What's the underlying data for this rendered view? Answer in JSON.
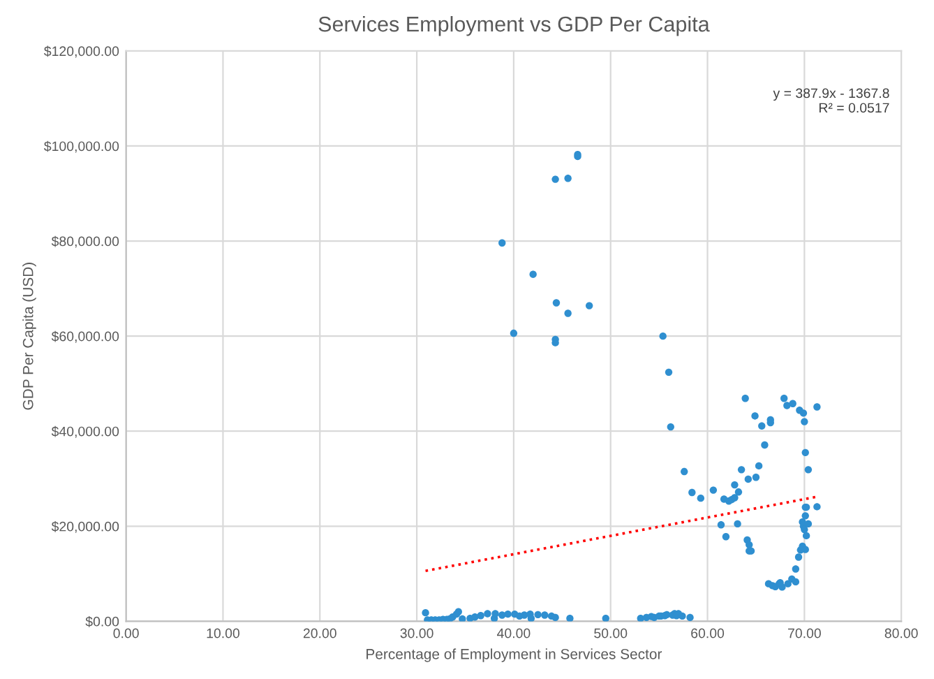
{
  "chart_data": {
    "type": "scatter",
    "title": "Services Employment vs GDP Per Capita",
    "xlabel": "Percentage of Employment in Services Sector",
    "ylabel": "GDP Per Capita (USD)",
    "annotations": [
      "y = 387.9x - 1367.8\nR² = 0.0517"
    ],
    "xlim": [
      0,
      80
    ],
    "ylim": [
      0,
      120000
    ],
    "xticks": [
      {
        "value": 0,
        "label": "0.00"
      },
      {
        "value": 10,
        "label": "10.00"
      },
      {
        "value": 20,
        "label": "20.00"
      },
      {
        "value": 30,
        "label": "30.00"
      },
      {
        "value": 40,
        "label": "40.00"
      },
      {
        "value": 50,
        "label": "50.00"
      },
      {
        "value": 60,
        "label": "60.00"
      },
      {
        "value": 70,
        "label": "70.00"
      },
      {
        "value": 80,
        "label": "80.00"
      }
    ],
    "yticks": [
      {
        "value": 0,
        "label": "$0.00"
      },
      {
        "value": 20000,
        "label": "$20,000.00"
      },
      {
        "value": 40000,
        "label": "$40,000.00"
      },
      {
        "value": 60000,
        "label": "$60,000.00"
      },
      {
        "value": 80000,
        "label": "$80,000.00"
      },
      {
        "value": 100000,
        "label": "$100,000.00"
      },
      {
        "value": 120000,
        "label": "$120,000.00"
      }
    ],
    "grid": true,
    "series": [
      {
        "color": "#2f8fd0",
        "marker": "circle",
        "x": [
          38.8,
          44.3,
          45.6,
          46.6,
          46.6,
          40.0,
          42.0,
          44.4,
          45.6,
          47.8,
          44.3,
          44.3,
          55.4,
          56.0,
          56.2,
          57.6,
          58.4,
          59.3,
          60.6,
          61.4,
          61.9,
          61.7,
          62.2,
          62.5,
          62.8,
          62.8,
          63.2,
          63.1,
          63.5,
          63.9,
          64.2,
          64.1,
          64.3,
          64.3,
          64.5,
          64.9,
          65.0,
          65.3,
          65.6,
          65.9,
          66.5,
          66.5,
          66.3,
          66.7,
          67.0,
          67.4,
          67.7,
          67.5,
          67.9,
          68.2,
          68.8,
          68.3,
          68.7,
          69.1,
          69.1,
          69.4,
          69.6,
          69.8,
          70.1,
          69.5,
          69.9,
          70.0,
          70.1,
          70.4,
          69.8,
          69.9,
          70.0,
          70.2,
          70.4,
          70.1,
          70.2,
          70.1,
          71.3,
          71.3,
          30.9,
          31.1,
          31.5,
          31.9,
          32.3,
          32.7,
          33.1,
          33.4,
          33.7,
          34.1,
          34.3,
          34.7,
          35.5,
          36.0,
          36.6,
          37.3,
          38.0,
          38.1,
          38.8,
          39.4,
          40.1,
          40.6,
          41.1,
          41.7,
          41.8,
          42.5,
          43.2,
          43.9,
          44.3,
          45.8,
          49.5,
          53.1,
          53.7,
          54.5,
          55.2,
          55.8,
          56.6,
          57.0,
          54.2,
          55.0,
          55.6,
          56.4,
          56.8,
          57.4,
          58.2
        ],
        "values": [
          79600,
          93000,
          93200,
          97800,
          98200,
          60600,
          73000,
          67000,
          64800,
          66400,
          59300,
          58600,
          60000,
          52400,
          40900,
          31500,
          27100,
          25900,
          27600,
          20300,
          17800,
          25700,
          25300,
          25600,
          26000,
          28700,
          27200,
          20500,
          31900,
          46900,
          29900,
          17100,
          16100,
          14800,
          14800,
          43200,
          30300,
          32700,
          41100,
          37100,
          42400,
          41800,
          7900,
          7500,
          7300,
          7900,
          7200,
          8100,
          46900,
          45400,
          45800,
          7900,
          8900,
          8300,
          11000,
          13500,
          15000,
          15800,
          15100,
          44400,
          43800,
          42000,
          35500,
          31900,
          20900,
          20000,
          19300,
          18000,
          20500,
          24000,
          24000,
          22200,
          24100,
          45100,
          1800,
          300,
          300,
          300,
          300,
          400,
          400,
          500,
          900,
          1500,
          2000,
          500,
          600,
          900,
          1200,
          1600,
          600,
          1600,
          1300,
          1500,
          1500,
          1100,
          1300,
          1500,
          600,
          1400,
          1300,
          1100,
          800,
          600,
          600,
          600,
          800,
          800,
          1100,
          1400,
          1600,
          1600,
          1000,
          1100,
          1200,
          1300,
          1200,
          1100,
          800
        ]
      },
      {
        "type": "line",
        "color": "#ff0000",
        "line_style": "dotted",
        "marker": "none",
        "x": [
          30.9,
          71.3
        ],
        "values": [
          10600,
          26200
        ]
      }
    ]
  }
}
